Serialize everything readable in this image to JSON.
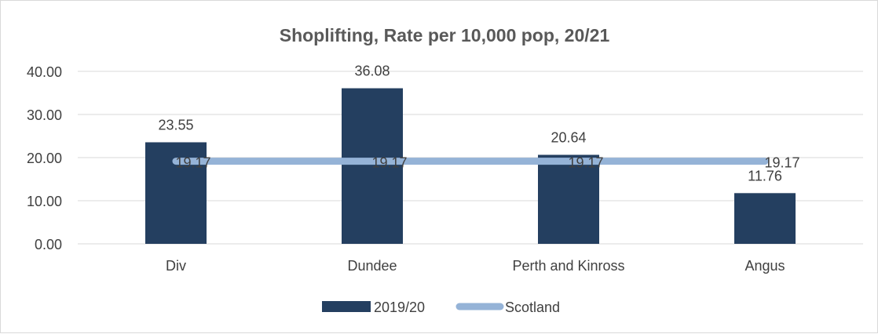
{
  "chart_data": {
    "type": "bar",
    "title": "Shoplifting, Rate per 10,000 pop, 20/21",
    "categories": [
      "Div",
      "Dundee",
      "Perth and Kinross",
      "Angus"
    ],
    "ylim": [
      0,
      40
    ],
    "yticks": [
      "0.00",
      "10.00",
      "20.00",
      "30.00",
      "40.00"
    ],
    "grid": true,
    "legend_position": "bottom",
    "series": [
      {
        "name": "2019/20",
        "kind": "bar",
        "color": "#243f60",
        "values": [
          23.55,
          36.08,
          20.64,
          11.76
        ],
        "labels": [
          "23.55",
          "36.08",
          "20.64",
          "11.76"
        ]
      },
      {
        "name": "Scotland",
        "kind": "line",
        "color": "#95b3d7",
        "values": [
          19.17,
          19.17,
          19.17,
          19.17
        ],
        "labels": [
          "19.17",
          "19.17",
          "19.17",
          "19.17"
        ]
      }
    ]
  }
}
